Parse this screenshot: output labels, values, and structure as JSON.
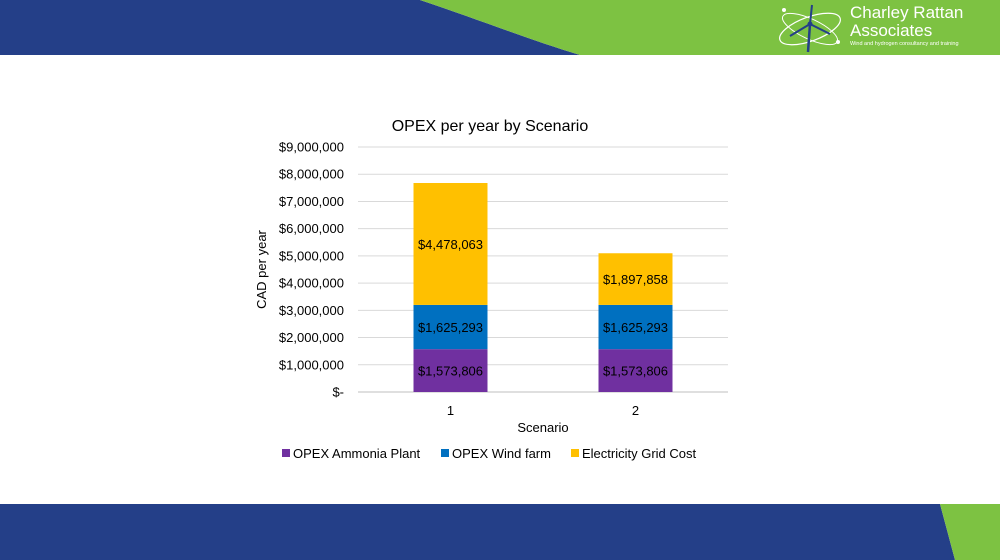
{
  "brand": {
    "name_line1": "Charley Rattan",
    "name_line2": "Associates",
    "tagline": "Wind and hydrogen consultancy and training",
    "colors": {
      "navy": "#243f88",
      "green": "#7dc242"
    }
  },
  "chart_data": {
    "type": "bar",
    "stacked": true,
    "title": "OPEX per year by Scenario",
    "xlabel": "Scenario",
    "ylabel": "CAD per year",
    "categories": [
      "1",
      "2"
    ],
    "ylim": [
      0,
      9000000
    ],
    "y_ticks": [
      "$-",
      "$1,000,000",
      "$2,000,000",
      "$3,000,000",
      "$4,000,000",
      "$5,000,000",
      "$6,000,000",
      "$7,000,000",
      "$8,000,000",
      "$9,000,000"
    ],
    "grid": true,
    "legend_position": "bottom",
    "series": [
      {
        "name": "OPEX Ammonia Plant",
        "color": "#7030a0",
        "values": [
          1573806,
          1573806
        ],
        "labels": [
          "$1,573,806",
          "$1,573,806"
        ]
      },
      {
        "name": "OPEX Wind farm",
        "color": "#0070c0",
        "values": [
          1625293,
          1625293
        ],
        "labels": [
          "$1,625,293",
          "$1,625,293"
        ]
      },
      {
        "name": "Electricity Grid Cost",
        "color": "#ffc000",
        "values": [
          4478063,
          1897858
        ],
        "labels": [
          "$4,478,063",
          "$1,897,858"
        ]
      }
    ]
  }
}
